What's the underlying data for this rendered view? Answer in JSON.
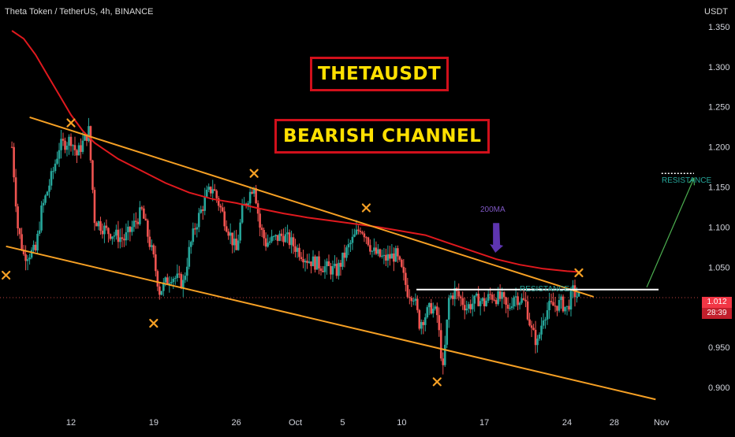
{
  "header": {
    "title": "Theta Token / TetherUS, 4h, BINANCE",
    "currency": "USDT"
  },
  "labels": {
    "main_title": "THETAUSDT",
    "pattern": "BEARISH CHANNEL",
    "ma_label": "200MA",
    "resistance_small": "RESISTANCE",
    "resistance_target": "RESISTANCE"
  },
  "price_box": {
    "price": "1.012",
    "countdown": "28:39",
    "color": "#f23645"
  },
  "colors": {
    "background": "#000000",
    "bull": "#26a69a",
    "bear": "#ef5350",
    "ma": "#e0191e",
    "channel": "#f6a024",
    "marker": "#f6a024",
    "resistance": "#ffffff",
    "arrow": "#4caf50",
    "ma_arrow": "#5e35b1",
    "title_box_border": "#d1101b",
    "title_text": "#ffe000"
  },
  "chart_data": {
    "type": "candlestick",
    "symbol": "THETAUSDT",
    "interval": "4h",
    "exchange": "BINANCE",
    "y_axis": {
      "ticks": [
        1.35,
        1.3,
        1.25,
        1.2,
        1.15,
        1.1,
        1.05,
        1.0,
        0.95,
        0.9
      ],
      "tick_labels": [
        "1.350",
        "1.300",
        "1.250",
        "1.200",
        "1.150",
        "1.100",
        "1.050",
        "1.000",
        "0.950",
        "0.900"
      ],
      "ylim": [
        0.87,
        1.39
      ],
      "unit": "USDT"
    },
    "x_axis": {
      "ticks": [
        "12",
        "19",
        "26",
        "Oct",
        "5",
        "10",
        "17",
        "24",
        "28",
        "Nov"
      ]
    },
    "price_path": [
      [
        "Sep 7 00:00",
        1.2
      ],
      [
        "Sep 7 12:00",
        1.1
      ],
      [
        "Sep 8 00:00",
        1.065
      ],
      [
        "Sep 9 00:00",
        1.07
      ],
      [
        "Sep 9 12:00",
        1.12
      ],
      [
        "Sep 10 12:00",
        1.17
      ],
      [
        "Sep 11 00:00",
        1.2
      ],
      [
        "Sep 12 00:00",
        1.21
      ],
      [
        "Sep 12 12:00",
        1.19
      ],
      [
        "Sep 13 12:00",
        1.22
      ],
      [
        "Sep 14 00:00",
        1.11
      ],
      [
        "Sep 15 00:00",
        1.095
      ],
      [
        "Sep 16 12:00",
        1.085
      ],
      [
        "Sep 17 00:00",
        1.095
      ],
      [
        "Sep 18 00:00",
        1.12
      ],
      [
        "Sep 19 00:00",
        1.06
      ],
      [
        "Sep 19 12:00",
        1.02
      ],
      [
        "Sep 20 12:00",
        1.04
      ],
      [
        "Sep 21 12:00",
        1.03
      ],
      [
        "Sep 22 00:00",
        1.07
      ],
      [
        "Sep 22 12:00",
        1.1
      ],
      [
        "Sep 23 12:00",
        1.14
      ],
      [
        "Sep 24 00:00",
        1.15
      ],
      [
        "Sep 24 12:00",
        1.13
      ],
      [
        "Sep 25 12:00",
        1.09
      ],
      [
        "Sep 26 00:00",
        1.07
      ],
      [
        "Sep 26 12:00",
        1.12
      ],
      [
        "Sep 27 12:00",
        1.155
      ],
      [
        "Sep 28 00:00",
        1.1
      ],
      [
        "Sep 28 12:00",
        1.08
      ],
      [
        "Sep 30 00:00",
        1.09
      ],
      [
        "Oct 1 00:00",
        1.075
      ],
      [
        "Oct 2 00:00",
        1.06
      ],
      [
        "Oct 3 12:00",
        1.05
      ],
      [
        "Oct 4 12:00",
        1.045
      ],
      [
        "Oct 5 12:00",
        1.075
      ],
      [
        "Oct 6 12:00",
        1.1
      ],
      [
        "Oct 7 00:00",
        1.09
      ],
      [
        "Oct 7 12:00",
        1.07
      ],
      [
        "Oct 8 12:00",
        1.06
      ],
      [
        "Oct 9 12:00",
        1.065
      ],
      [
        "Oct 10 00:00",
        1.045
      ],
      [
        "Oct 10 12:00",
        1.02
      ],
      [
        "Oct 11 00:00",
        1.015
      ],
      [
        "Oct 11 12:00",
        0.98
      ],
      [
        "Oct 12 12:00",
        1.0
      ],
      [
        "Oct 13 00:00",
        0.99
      ],
      [
        "Oct 13 12:00",
        0.92
      ],
      [
        "Oct 14 00:00",
        1.01
      ],
      [
        "Oct 14 12:00",
        1.02
      ],
      [
        "Oct 15 12:00",
        1.0
      ],
      [
        "Oct 16 12:00",
        1.01
      ],
      [
        "Oct 17 00:00",
        1.005
      ],
      [
        "Oct 17 12:00",
        1.015
      ],
      [
        "Oct 18 12:00",
        1.01
      ],
      [
        "Oct 19 00:00",
        0.995
      ],
      [
        "Oct 19 12:00",
        1.015
      ],
      [
        "Oct 20 12:00",
        1.005
      ],
      [
        "Oct 21 00:00",
        0.97
      ],
      [
        "Oct 21 12:00",
        0.955
      ],
      [
        "Oct 22 00:00",
        0.99
      ],
      [
        "Oct 22 12:00",
        1.0
      ],
      [
        "Oct 23 12:00",
        1.005
      ],
      [
        "Oct 24 00:00",
        0.998
      ],
      [
        "Oct 24 12:00",
        1.02
      ],
      [
        "Oct 25 00:00",
        1.012
      ]
    ],
    "ma200": [
      [
        "Sep 7 00:00",
        1.345
      ],
      [
        "Sep 8 00:00",
        1.335
      ],
      [
        "Sep 9 00:00",
        1.315
      ],
      [
        "Sep 10 00:00",
        1.29
      ],
      [
        "Sep 11 00:00",
        1.265
      ],
      [
        "Sep 12 00:00",
        1.24
      ],
      [
        "Sep 13 00:00",
        1.22
      ],
      [
        "Sep 14 00:00",
        1.205
      ],
      [
        "Sep 16 00:00",
        1.185
      ],
      [
        "Sep 18 00:00",
        1.17
      ],
      [
        "Sep 20 00:00",
        1.155
      ],
      [
        "Sep 22 00:00",
        1.143
      ],
      [
        "Sep 24 00:00",
        1.135
      ],
      [
        "Sep 26 00:00",
        1.13
      ],
      [
        "Sep 28 00:00",
        1.123
      ],
      [
        "Sep 30 00:00",
        1.117
      ],
      [
        "Oct 2 00:00",
        1.112
      ],
      [
        "Oct 4 00:00",
        1.108
      ],
      [
        "Oct 6 00:00",
        1.104
      ],
      [
        "Oct 8 00:00",
        1.1
      ],
      [
        "Oct 10 00:00",
        1.095
      ],
      [
        "Oct 12 00:00",
        1.09
      ],
      [
        "Oct 14 00:00",
        1.08
      ],
      [
        "Oct 16 00:00",
        1.07
      ],
      [
        "Oct 18 00:00",
        1.06
      ],
      [
        "Oct 20 00:00",
        1.053
      ],
      [
        "Oct 22 00:00",
        1.048
      ],
      [
        "Oct 24 00:00",
        1.045
      ],
      [
        "Oct 25 00:00",
        1.044
      ]
    ],
    "channel_upper": [
      [
        "Sep 8 12:00",
        1.237
      ],
      [
        "Oct 26 06:00",
        1.013
      ]
    ],
    "channel_lower": [
      [
        "Sep 6 12:00",
        1.076
      ],
      [
        "Oct 31 12:00",
        0.885
      ]
    ],
    "resistance_line": {
      "from": "Oct 11 06:00",
      "to": "Oct 31 18:00",
      "price": 1.022
    },
    "resistance_target": {
      "from": "Nov 1 00:00",
      "to": "Nov 3 18:00",
      "price": 1.167
    },
    "breakout_arrow": {
      "from": [
        "Oct 30 18:00",
        1.025
      ],
      "to": [
        "Nov 3 18:00",
        1.161
      ]
    },
    "ma_arrow": {
      "from": [
        "Oct 18 00:00",
        1.105
      ],
      "to": [
        "Oct 18 00:00",
        1.068
      ]
    },
    "current_price_line": 1.012,
    "pivot_markers": [
      [
        "Sep 6 12:00",
        1.04
      ],
      [
        "Sep 12 00:00",
        1.23
      ],
      [
        "Sep 19 00:00",
        0.98
      ],
      [
        "Sep 27 12:00",
        1.167
      ],
      [
        "Oct 7 00:00",
        1.124
      ],
      [
        "Oct 13 00:00",
        0.907
      ],
      [
        "Oct 25 00:00",
        1.043
      ]
    ],
    "legend": "none",
    "grid": false
  }
}
